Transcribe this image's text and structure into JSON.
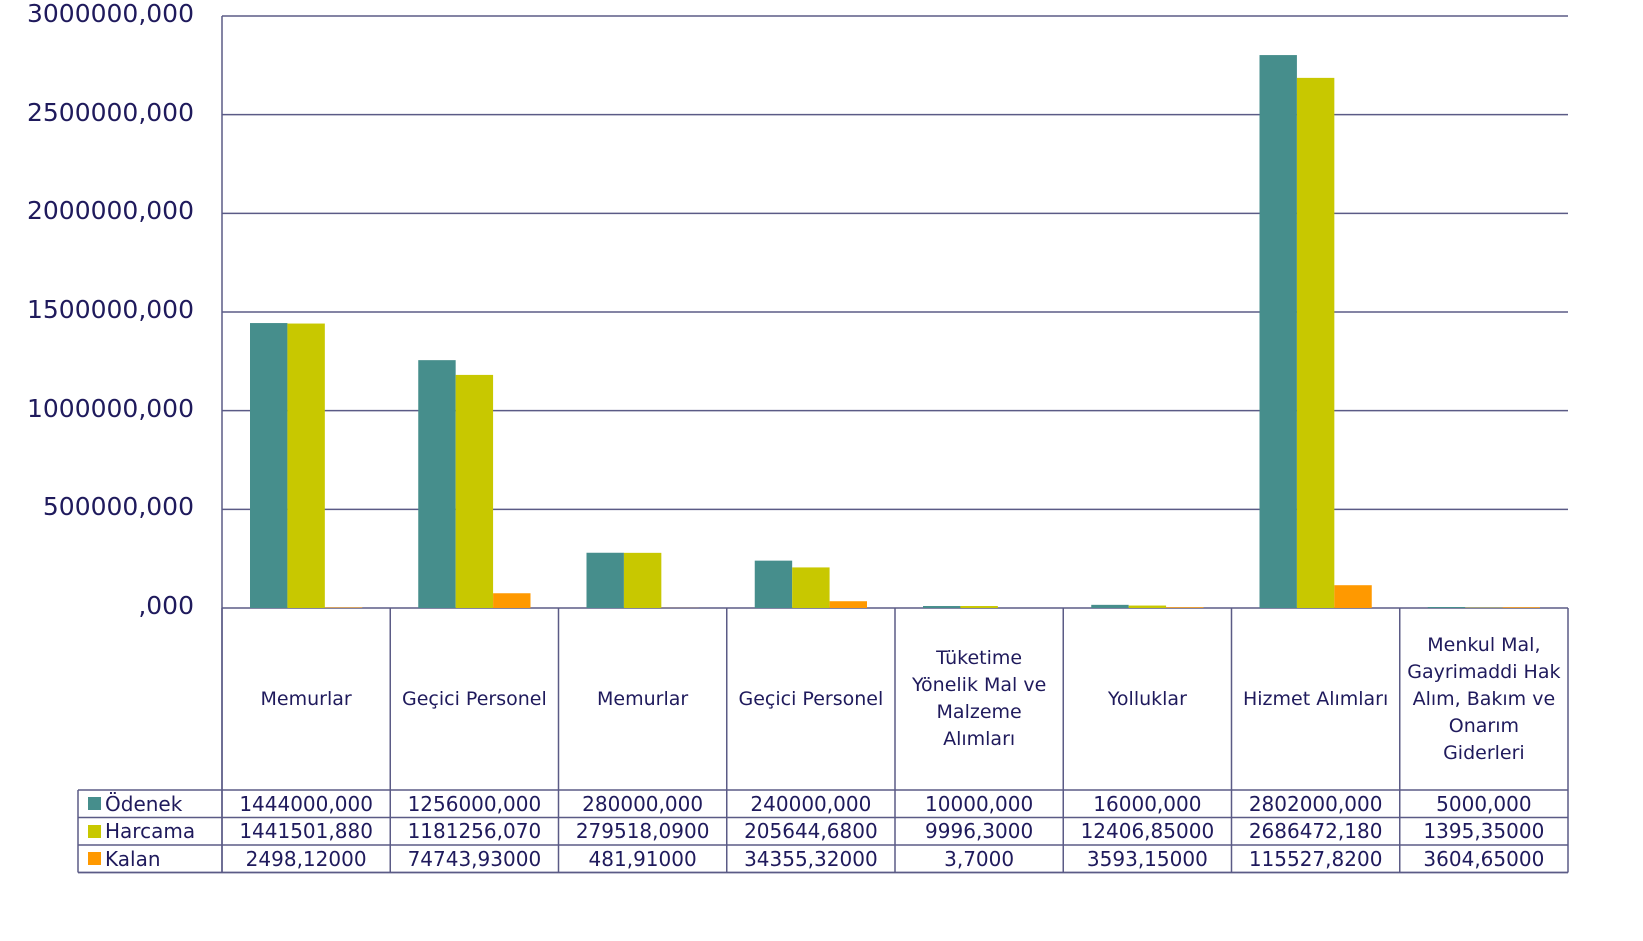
{
  "chart_data": {
    "type": "bar",
    "categories": [
      "Memurlar",
      "Geçici Personel",
      "Memurlar",
      "Geçici Personel",
      "Tüketime Yönelik Mal ve Malzeme Alımları",
      "Yolluklar",
      "Hizmet Alımları",
      "Menkul Mal, Gayrimaddi Hak Alım, Bakım ve Onarım Giderleri"
    ],
    "series": [
      {
        "name": "Ödenek",
        "color": "#468e8c",
        "values": [
          1444000,
          1256000,
          280000,
          240000,
          10000,
          16000,
          2802000,
          5000
        ],
        "value_labels": [
          "1444000,000",
          "1256000,000",
          "280000,000",
          "240000,000",
          "10000,000",
          "16000,000",
          "2802000,000",
          "5000,000"
        ]
      },
      {
        "name": "Harcama",
        "color": "#c8c800",
        "values": [
          1441501.88,
          1181256.07,
          279518.09,
          205644.68,
          9996.3,
          12406.85,
          2686472.18,
          1395.35
        ],
        "value_labels": [
          "1441501,880",
          "1181256,070",
          "279518,0900",
          "205644,6800",
          "9996,3000",
          "12406,85000",
          "2686472,180",
          "1395,35000"
        ]
      },
      {
        "name": "Kalan",
        "color": "#ff9900",
        "values": [
          2498.12,
          74743.93,
          481.91,
          34355.32,
          3.7,
          3593.15,
          115527.82,
          3604.65
        ],
        "value_labels": [
          "2498,12000",
          "74743,93000",
          "481,91000",
          "34355,32000",
          "3,7000",
          "3593,15000",
          "115527,8200",
          "3604,65000"
        ]
      }
    ],
    "ylim": [
      0,
      3000000
    ],
    "yticks": [
      {
        "value": 0,
        "label": ",000"
      },
      {
        "value": 500000,
        "label": "500000,000"
      },
      {
        "value": 1000000,
        "label": "1000000,000"
      },
      {
        "value": 1500000,
        "label": "1500000,000"
      },
      {
        "value": 2000000,
        "label": "2000000,000"
      },
      {
        "value": 2500000,
        "label": "2500000,000"
      },
      {
        "value": 3000000,
        "label": "3000000,000"
      }
    ],
    "grid": true
  }
}
